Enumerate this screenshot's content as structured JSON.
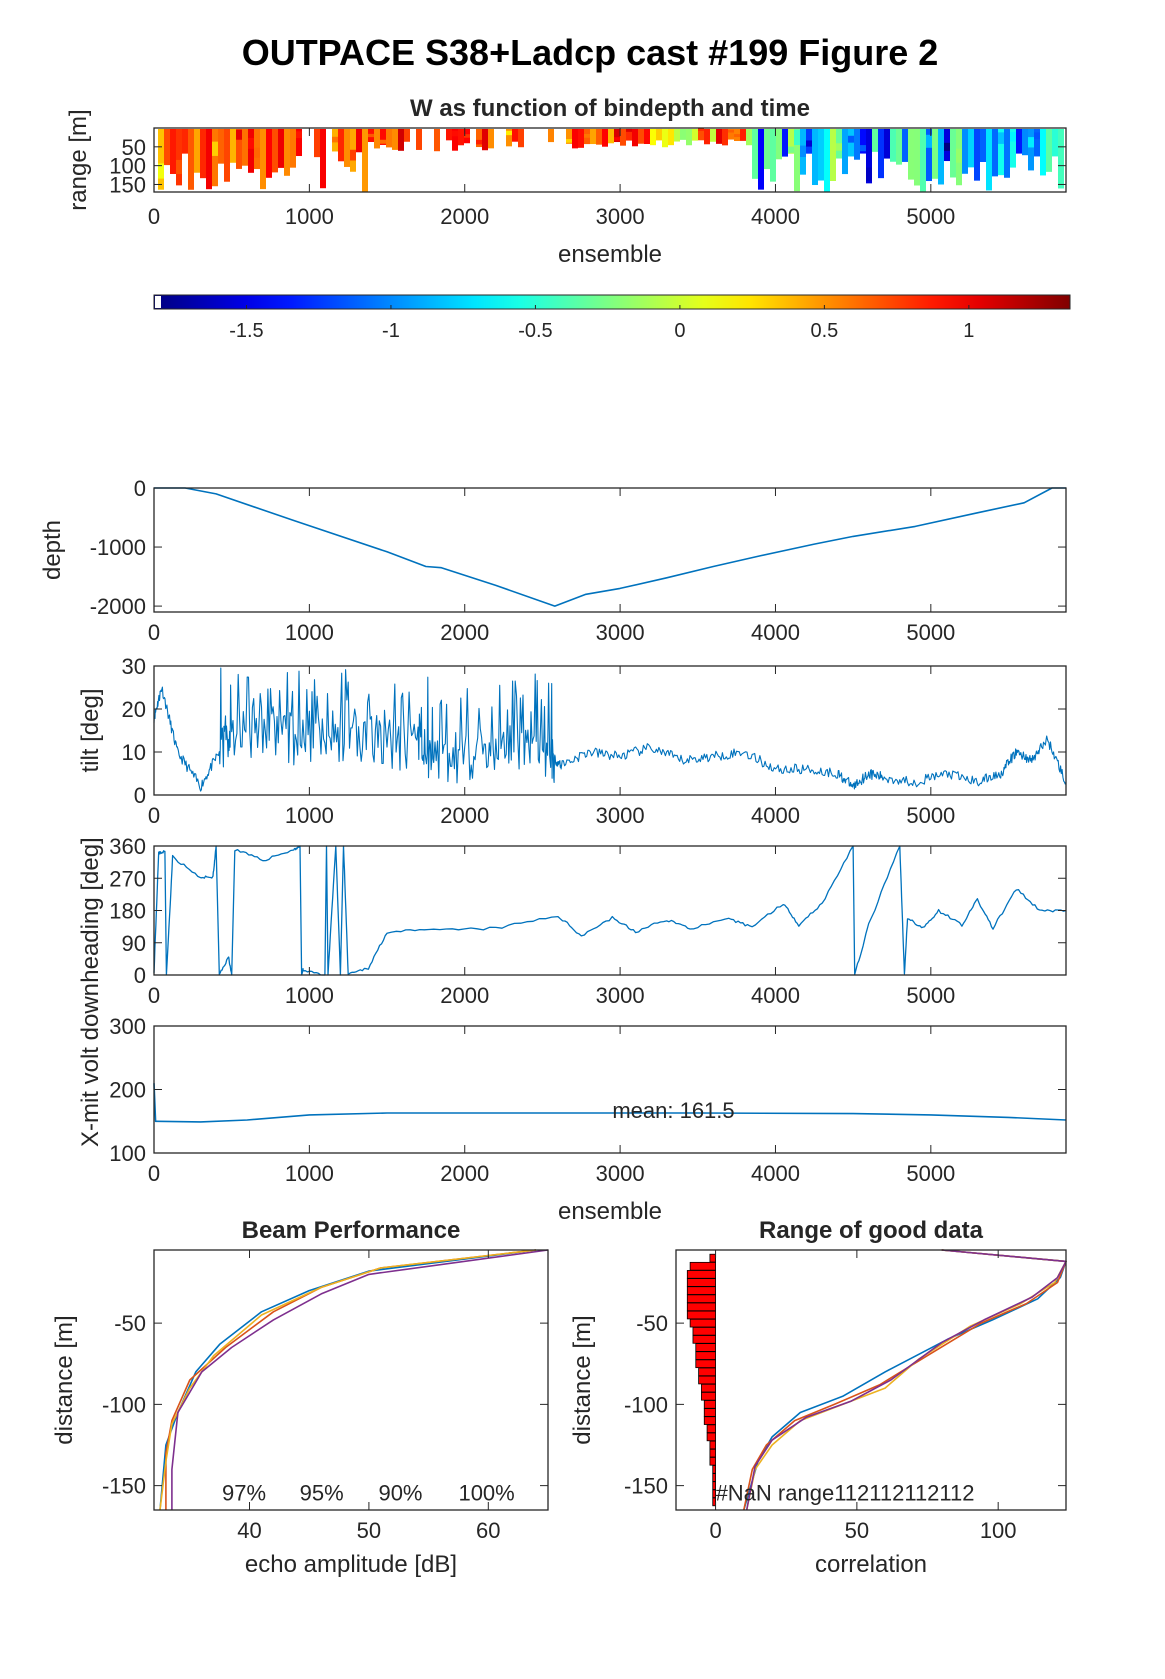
{
  "figure": {
    "title": "OUTPACE S38+Ladcp cast #199 Figure 2"
  },
  "chart_data": [
    {
      "id": "w_panel",
      "type": "heatmap",
      "title": "W as function of bindepth and time",
      "xlabel": "ensemble",
      "ylabel": "range [m]",
      "xlim": [
        0,
        5870
      ],
      "ylim": [
        170,
        0
      ],
      "xticks": [
        0,
        1000,
        2000,
        3000,
        4000,
        5000
      ],
      "yticks": [
        50,
        100,
        150
      ],
      "colorbar": {
        "colormap": "jet",
        "clim": [
          -1.82,
          1.35
        ],
        "ticks": [
          -1.5,
          -1,
          -0.5,
          0,
          0.5,
          1
        ],
        "tick_labels": [
          "-1.5",
          "-1",
          "-0.5",
          "0",
          "0.5",
          "1"
        ]
      }
    },
    {
      "id": "depth_panel",
      "type": "line",
      "xlabel": "",
      "ylabel": "depth",
      "xlim": [
        0,
        5870
      ],
      "ylim": [
        -2100,
        0
      ],
      "xticks": [
        0,
        1000,
        2000,
        3000,
        4000,
        5000
      ],
      "yticks": [
        0,
        -1000,
        -2000
      ],
      "color": "#0072BD",
      "x": [
        0,
        200,
        400,
        900,
        1500,
        1750,
        1850,
        2200,
        2580,
        2780,
        3000,
        3300,
        3600,
        3900,
        4250,
        4500,
        4900,
        5300,
        5600,
        5780,
        5870
      ],
      "y": [
        0,
        0,
        -100,
        -550,
        -1080,
        -1330,
        -1350,
        -1650,
        -2000,
        -1800,
        -1700,
        -1520,
        -1330,
        -1150,
        -950,
        -820,
        -650,
        -420,
        -250,
        0,
        0
      ]
    },
    {
      "id": "tilt_panel",
      "type": "line",
      "xlabel": "",
      "ylabel": "tilt [deg]",
      "xlim": [
        0,
        5870
      ],
      "ylim": [
        0,
        30
      ],
      "xticks": [
        0,
        1000,
        2000,
        3000,
        4000,
        5000
      ],
      "yticks": [
        0,
        10,
        20,
        30
      ],
      "color": "#0072BD",
      "x": [
        0,
        50,
        150,
        300,
        420,
        500,
        700,
        900,
        1100,
        1300,
        1500,
        1700,
        1800,
        2000,
        2200,
        2400,
        2560,
        2620,
        2800,
        3000,
        3200,
        3400,
        3600,
        3800,
        4000,
        4200,
        4400,
        4500,
        4600,
        4700,
        4900,
        5100,
        5300,
        5450,
        5550,
        5650,
        5750,
        5870
      ],
      "y": [
        18,
        25,
        10,
        2,
        10,
        14,
        15,
        13,
        12,
        14,
        12,
        11,
        8,
        9,
        10,
        11,
        9,
        7,
        10,
        9,
        11,
        8,
        9,
        10,
        6,
        6,
        5,
        2,
        5,
        4,
        3,
        5,
        3,
        5,
        10,
        8,
        13,
        3
      ]
    },
    {
      "id": "heading_panel",
      "type": "line",
      "xlabel": "",
      "ylabel": "heading [deg]",
      "xlim": [
        0,
        5870
      ],
      "ylim": [
        0,
        360
      ],
      "xticks": [
        0,
        1000,
        2000,
        3000,
        4000,
        5000
      ],
      "yticks": [
        0,
        90,
        180,
        270,
        360
      ],
      "color": "#0072BD",
      "x": [
        0,
        30,
        70,
        80,
        120,
        300,
        380,
        400,
        420,
        480,
        500,
        520,
        700,
        900,
        940,
        950,
        960,
        1100,
        1110,
        1120,
        1170,
        1200,
        1220,
        1250,
        1380,
        1500,
        1800,
        2200,
        2600,
        2750,
        2950,
        3100,
        3300,
        3450,
        3700,
        3850,
        4050,
        4150,
        4300,
        4500,
        4510,
        4600,
        4800,
        4830,
        4850,
        4950,
        5050,
        5200,
        5300,
        5400,
        5550,
        5700,
        5870
      ],
      "y": [
        10,
        340,
        345,
        0,
        330,
        270,
        275,
        360,
        0,
        50,
        0,
        350,
        320,
        350,
        360,
        0,
        15,
        0,
        360,
        0,
        360,
        0,
        360,
        0,
        20,
        120,
        125,
        130,
        165,
        110,
        160,
        120,
        155,
        130,
        155,
        135,
        200,
        140,
        200,
        360,
        0,
        140,
        360,
        0,
        160,
        130,
        180,
        140,
        210,
        130,
        240,
        180,
        180
      ]
    },
    {
      "id": "xmit_panel",
      "type": "line",
      "xlabel": "ensemble",
      "ylabel": "X-mit volt down",
      "xlim": [
        0,
        5870
      ],
      "ylim": [
        100,
        300
      ],
      "xticks": [
        0,
        1000,
        2000,
        3000,
        4000,
        5000
      ],
      "yticks": [
        100,
        200,
        300
      ],
      "annotation": "mean: 161.5",
      "color": "#0072BD",
      "x": [
        0,
        10,
        20,
        300,
        600,
        1000,
        1500,
        2500,
        3500,
        4500,
        5000,
        5500,
        5870
      ],
      "y": [
        210,
        150,
        150,
        149,
        152,
        160,
        163,
        163,
        163,
        162,
        160,
        156,
        152
      ]
    },
    {
      "id": "beam_panel",
      "type": "line",
      "title": "Beam Performance",
      "xlabel": "echo amplitude [dB]",
      "ylabel": "distance [m]",
      "xlim": [
        32,
        65
      ],
      "ylim": [
        -165,
        -5
      ],
      "xticks": [
        40,
        50,
        60
      ],
      "yticks": [
        -50,
        -100,
        -150
      ],
      "annotations": [
        "97%",
        "95%",
        "90%",
        "100%"
      ],
      "series": [
        {
          "color": "#0072BD",
          "x": [
            64,
            50,
            45,
            41,
            37.5,
            35.5,
            34,
            33,
            32.5
          ],
          "y": [
            -5,
            -18,
            -30,
            -43,
            -63,
            -80,
            -105,
            -125,
            -165
          ]
        },
        {
          "color": "#D95319",
          "x": [
            64,
            51,
            46,
            42,
            38,
            35,
            33.5,
            33,
            33
          ],
          "y": [
            -5,
            -16,
            -28,
            -43,
            -65,
            -85,
            -110,
            -130,
            -165
          ]
        },
        {
          "color": "#EDB120",
          "x": [
            64,
            51,
            46,
            41,
            37,
            35,
            33.5,
            33,
            32.5
          ],
          "y": [
            -5,
            -16,
            -28,
            -45,
            -70,
            -90,
            -112,
            -135,
            -165
          ]
        },
        {
          "color": "#7E2F8E",
          "x": [
            65,
            50,
            46,
            42,
            38.5,
            36,
            34,
            33.5,
            33.5
          ],
          "y": [
            -5,
            -20,
            -32,
            -48,
            -65,
            -80,
            -105,
            -140,
            -165
          ]
        }
      ]
    },
    {
      "id": "range_panel",
      "type": "line",
      "title": "Range of good data",
      "xlabel": "correlation",
      "ylabel": "distance [m]",
      "xlim": [
        -14,
        124
      ],
      "ylim": [
        -165,
        -5
      ],
      "xticks": [
        0,
        50,
        100
      ],
      "yticks": [
        -50,
        -100,
        -150
      ],
      "annotation": "#NaN range112112112112",
      "bars": {
        "color": "#FF0000",
        "y": [
          -10,
          -15,
          -20,
          -25,
          -30,
          -35,
          -40,
          -45,
          -50,
          -55,
          -60,
          -65,
          -70,
          -75,
          -80,
          -85,
          -90,
          -95,
          -100,
          -105,
          -110,
          -115,
          -120,
          -125,
          -130,
          -135,
          -140,
          -145,
          -150,
          -155,
          -160
        ],
        "widths": [
          2,
          9,
          10,
          10,
          10,
          10,
          10,
          10,
          9,
          8,
          8,
          7,
          7,
          7,
          6,
          6,
          5,
          5,
          4,
          4,
          4,
          3,
          3,
          2,
          2,
          2,
          1,
          1,
          1,
          1,
          1
        ]
      },
      "series": [
        {
          "color": "#0072BD",
          "x": [
            80,
            124,
            122,
            114,
            98,
            82,
            60,
            45,
            30,
            20,
            15,
            10
          ],
          "y": [
            -5,
            -12,
            -22,
            -35,
            -48,
            -60,
            -80,
            -95,
            -105,
            -120,
            -135,
            -165
          ]
        },
        {
          "color": "#D95319",
          "x": [
            80,
            124,
            121,
            110,
            94,
            75,
            58,
            42,
            28,
            18,
            13,
            10
          ],
          "y": [
            -5,
            -12,
            -25,
            -38,
            -50,
            -70,
            -88,
            -100,
            -110,
            -125,
            -140,
            -165
          ]
        },
        {
          "color": "#EDB120",
          "x": [
            80,
            124,
            120,
            108,
            90,
            72,
            60,
            45,
            30,
            20,
            14,
            11
          ],
          "y": [
            -5,
            -12,
            -25,
            -38,
            -52,
            -72,
            -90,
            -100,
            -110,
            -125,
            -140,
            -165
          ]
        },
        {
          "color": "#7E2F8E",
          "x": [
            80,
            124,
            121,
            112,
            95,
            80,
            62,
            48,
            32,
            20,
            14,
            11
          ],
          "y": [
            -5,
            -12,
            -22,
            -34,
            -48,
            -62,
            -85,
            -98,
            -108,
            -122,
            -138,
            -165
          ]
        }
      ]
    }
  ]
}
